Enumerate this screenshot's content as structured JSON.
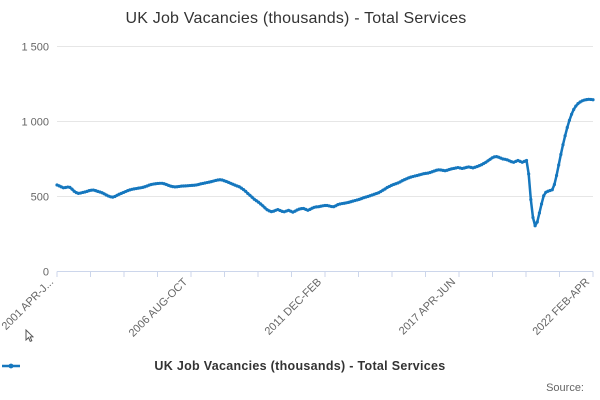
{
  "title": "UK Job Vacancies (thousands) - Total Services",
  "legend": {
    "label": "UK Job Vacancies (thousands) - Total Services"
  },
  "source_label": "Source:",
  "colors": {
    "line": "#1577be",
    "grid": "#e6e6e6",
    "axis": "#ccd6eb",
    "tick_label": "#666666",
    "title_text": "#333333",
    "legend_text": "#333333",
    "source_text": "#666666"
  },
  "y_axis": {
    "ticks": [
      {
        "value": 0,
        "label": "0"
      },
      {
        "value": 500,
        "label": "500"
      },
      {
        "value": 1000,
        "label": "1 000"
      },
      {
        "value": 1500,
        "label": "1 500"
      }
    ]
  },
  "x_axis": {
    "minor_tick_count": 17,
    "major_labels": [
      {
        "tick_index": 0,
        "label": "2001 APR-J..."
      },
      {
        "tick_index": 4,
        "label": "2006 AUG-OCT"
      },
      {
        "tick_index": 8,
        "label": "2011 DEC-FEB"
      },
      {
        "tick_index": 12,
        "label": "2017 APR-JUN"
      },
      {
        "tick_index": 16,
        "label": "2022 FEB-APR"
      }
    ]
  },
  "chart_data": {
    "type": "line",
    "title": "UK Job Vacancies (thousands) - Total Services",
    "xlabel": "",
    "ylabel": "",
    "ylim": [
      0,
      1500
    ],
    "grid": "horizontal",
    "legend_position": "bottom",
    "x_tick_labels": [
      "2001 APR-J...",
      "2006 AUG-OCT",
      "2011 DEC-FEB",
      "2017 APR-JUN",
      "2022 FEB-APR"
    ],
    "series": [
      {
        "name": "UK Job Vacancies (thousands) - Total Services",
        "x_start": "2001 APR-JUN",
        "x_end": "2022 FEB-APR",
        "values": [
          577,
          571,
          564,
          558,
          560,
          563,
          561,
          549,
          535,
          526,
          521,
          523,
          527,
          530,
          534,
          539,
          542,
          543,
          539,
          534,
          530,
          525,
          518,
          510,
          503,
          498,
          496,
          500,
          508,
          515,
          521,
          527,
          533,
          539,
          544,
          548,
          551,
          553,
          556,
          558,
          561,
          565,
          570,
          576,
          580,
          583,
          585,
          587,
          588,
          588,
          585,
          580,
          574,
          569,
          566,
          564,
          565,
          567,
          569,
          570,
          571,
          572,
          573,
          574,
          575,
          577,
          580,
          584,
          587,
          590,
          593,
          596,
          599,
          603,
          607,
          610,
          612,
          610,
          605,
          600,
          594,
          588,
          582,
          576,
          570,
          565,
          556,
          546,
          534,
          520,
          508,
          495,
          482,
          472,
          462,
          450,
          438,
          424,
          412,
          404,
          399,
          402,
          408,
          413,
          407,
          401,
          398,
          403,
          408,
          402,
          396,
          402,
          410,
          416,
          419,
          420,
          414,
          408,
          414,
          422,
          428,
          431,
          432,
          435,
          438,
          440,
          440,
          437,
          433,
          432,
          438,
          446,
          450,
          453,
          455,
          458,
          461,
          465,
          469,
          473,
          477,
          481,
          486,
          492,
          496,
          500,
          505,
          510,
          515,
          520,
          525,
          533,
          542,
          550,
          560,
          567,
          574,
          580,
          585,
          590,
          597,
          605,
          612,
          618,
          624,
          629,
          633,
          637,
          640,
          644,
          648,
          652,
          654,
          656,
          660,
          665,
          670,
          675,
          678,
          677,
          674,
          672,
          675,
          680,
          684,
          687,
          690,
          693,
          690,
          687,
          690,
          694,
          697,
          694,
          691,
          695,
          700,
          706,
          712,
          720,
          728,
          738,
          748,
          758,
          764,
          766,
          762,
          756,
          750,
          748,
          744,
          738,
          732,
          728,
          734,
          740,
          734,
          728,
          734,
          740,
          650,
          480,
          360,
          305,
          330,
          390,
          450,
          505,
          528,
          535,
          540,
          545,
          580,
          640,
          710,
          780,
          845,
          905,
          960,
          1008,
          1048,
          1080,
          1103,
          1119,
          1130,
          1138,
          1143,
          1146,
          1148,
          1147,
          1145
        ]
      }
    ]
  }
}
